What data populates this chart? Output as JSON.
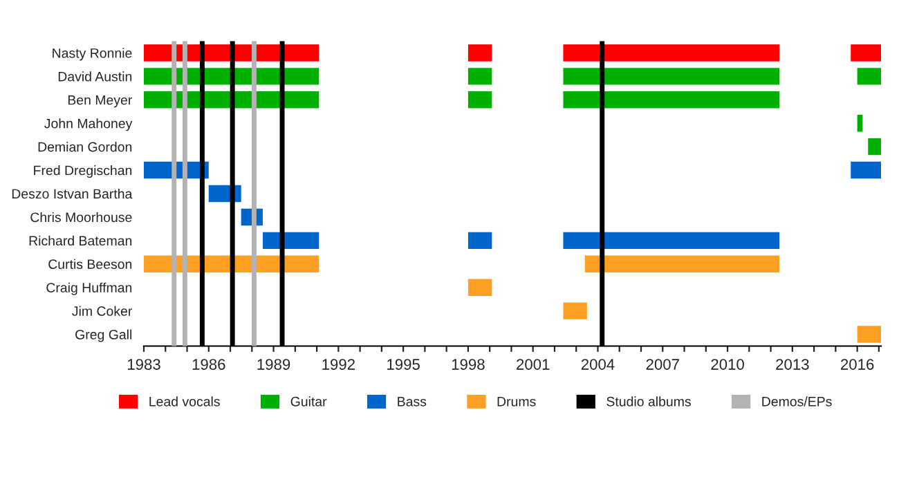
{
  "chart_data": {
    "type": "bar",
    "orientation": "horizontal",
    "legend": "bottom",
    "grid": false,
    "categories": [
      "Nasty Ronnie",
      "David Austin",
      "Ben Meyer",
      "John Mahoney",
      "Demian Gordon",
      "Fred Dregischan",
      "Deszo Istvan Bartha",
      "Chris Moorhouse",
      "Richard Bateman",
      "Curtis Beeson",
      "Craig Huffman",
      "Jim Coker",
      "Greg Gall"
    ],
    "xlim": [
      1983,
      2017.1
    ],
    "xticks": [
      1983,
      {
        "value": 1984,
        "label": null
      },
      {
        "value": 1985,
        "label": null
      },
      1986,
      {
        "value": 1987,
        "label": null
      },
      {
        "value": 1988,
        "label": null
      },
      1989,
      {
        "value": 1990,
        "label": null
      },
      {
        "value": 1991,
        "label": null
      },
      1992,
      {
        "value": 1993,
        "label": null
      },
      {
        "value": 1994,
        "label": null
      },
      1995,
      {
        "value": 1996,
        "label": null
      },
      {
        "value": 1997,
        "label": null
      },
      1998,
      {
        "value": 1999,
        "label": null
      },
      {
        "value": 2000,
        "label": null
      },
      2001,
      {
        "value": 2002,
        "label": null
      },
      {
        "value": 2003,
        "label": null
      },
      2004,
      {
        "value": 2005,
        "label": null
      },
      {
        "value": 2006,
        "label": null
      },
      2007,
      {
        "value": 2008,
        "label": null
      },
      {
        "value": 2009,
        "label": null
      },
      2010,
      {
        "value": 2011,
        "label": null
      },
      {
        "value": 2012,
        "label": null
      },
      2013,
      {
        "value": 2014,
        "label": null
      },
      {
        "value": 2015,
        "label": null
      },
      2016,
      {
        "value": 2017,
        "label": null
      }
    ],
    "series": [
      {
        "name": "Lead vocals",
        "color": "#ff0000",
        "base": [
          1983,
          null,
          null,
          null,
          null,
          null,
          null,
          null,
          null,
          null,
          null,
          null,
          null
        ],
        "values": [
          8.1,
          null,
          null,
          null,
          null,
          null,
          null,
          null,
          null,
          null,
          null,
          null,
          null
        ]
      },
      {
        "color": "#ff0000",
        "base": [
          1998,
          null,
          null,
          null,
          null,
          null,
          null,
          null,
          null,
          null,
          null,
          null,
          null
        ],
        "values": [
          1.1,
          null,
          null,
          null,
          null,
          null,
          null,
          null,
          null,
          null,
          null,
          null,
          null
        ]
      },
      {
        "color": "#ff0000",
        "base": [
          2002.4,
          null,
          null,
          null,
          null,
          null,
          null,
          null,
          null,
          null,
          null,
          null,
          null
        ],
        "values": [
          10,
          null,
          null,
          null,
          null,
          null,
          null,
          null,
          null,
          null,
          null,
          null,
          null
        ]
      },
      {
        "color": "#ff0000",
        "base": [
          2015.7,
          null,
          null,
          null,
          null,
          null,
          null,
          null,
          null,
          null,
          null,
          null,
          null
        ],
        "values": [
          1.4,
          null,
          null,
          null,
          null,
          null,
          null,
          null,
          null,
          null,
          null,
          null,
          null
        ]
      },
      {
        "name": "Guitar",
        "color": "#00b000",
        "base": [
          null,
          1983,
          1983,
          null,
          null,
          null,
          null,
          null,
          null,
          null,
          null,
          null,
          null
        ],
        "values": [
          null,
          8.1,
          8.1,
          null,
          null,
          null,
          null,
          null,
          null,
          null,
          null,
          null,
          null
        ]
      },
      {
        "color": "#00b000",
        "base": [
          null,
          1998,
          1998,
          null,
          null,
          null,
          null,
          null,
          null,
          null,
          null,
          null,
          null
        ],
        "values": [
          null,
          1.1,
          1.1,
          null,
          null,
          null,
          null,
          null,
          null,
          null,
          null,
          null,
          null
        ]
      },
      {
        "color": "#00b000",
        "base": [
          null,
          2002.4,
          2002.4,
          null,
          null,
          null,
          null,
          null,
          null,
          null,
          null,
          null,
          null
        ],
        "values": [
          null,
          10,
          10,
          null,
          null,
          null,
          null,
          null,
          null,
          null,
          null,
          null,
          null
        ]
      },
      {
        "color": "#00b000",
        "base": [
          null,
          2016,
          null,
          2016,
          2016.5,
          null,
          null,
          null,
          null,
          null,
          null,
          null,
          null
        ],
        "values": [
          null,
          1.1,
          null,
          0.25,
          0.6,
          null,
          null,
          null,
          null,
          null,
          null,
          null,
          null
        ]
      },
      {
        "name": "Bass",
        "color": "#0066cc",
        "base": [
          null,
          null,
          null,
          null,
          null,
          1983,
          1986,
          1987.5,
          1988.5,
          null,
          null,
          null,
          null
        ],
        "values": [
          null,
          null,
          null,
          null,
          null,
          3,
          1.5,
          1,
          2.6,
          null,
          null,
          null,
          null
        ]
      },
      {
        "color": "#0066cc",
        "base": [
          null,
          null,
          null,
          null,
          null,
          null,
          null,
          null,
          1998,
          null,
          null,
          null,
          null
        ],
        "values": [
          null,
          null,
          null,
          null,
          null,
          null,
          null,
          null,
          1.1,
          null,
          null,
          null,
          null
        ]
      },
      {
        "color": "#0066cc",
        "base": [
          null,
          null,
          null,
          null,
          null,
          2015.7,
          null,
          null,
          2002.4,
          null,
          null,
          null,
          null
        ],
        "values": [
          null,
          null,
          null,
          null,
          null,
          1.4,
          null,
          null,
          10,
          null,
          null,
          null,
          null
        ]
      },
      {
        "name": "Drums",
        "color": "#ffa024",
        "base": [
          null,
          null,
          null,
          null,
          null,
          null,
          null,
          null,
          null,
          1983,
          1998,
          2002.4,
          2016
        ],
        "values": [
          null,
          null,
          null,
          null,
          null,
          null,
          null,
          null,
          null,
          8.1,
          1.1,
          1.1,
          1.1
        ]
      },
      {
        "color": "#ffa024",
        "base": [
          null,
          null,
          null,
          null,
          null,
          null,
          null,
          null,
          null,
          2003.4,
          null,
          null,
          null
        ],
        "values": [
          null,
          null,
          null,
          null,
          null,
          null,
          null,
          null,
          null,
          9,
          null,
          null,
          null
        ]
      }
    ],
    "ref_lines": [
      {
        "axis": "x",
        "value": 1985.7,
        "color": "#000000",
        "label": "Studio albums"
      },
      {
        "axis": "x",
        "value": 1987.1,
        "color": "#000000"
      },
      {
        "axis": "x",
        "value": 1989.4,
        "color": "#000000"
      },
      {
        "axis": "x",
        "value": 2004.2,
        "color": "#000000"
      },
      {
        "axis": "x",
        "value": 1984.4,
        "color": "#b3b3b3",
        "label": "Demos/EPs"
      },
      {
        "axis": "x",
        "value": 1984.9,
        "color": "#b3b3b3"
      },
      {
        "axis": "x",
        "value": 1988.1,
        "color": "#b3b3b3"
      }
    ]
  }
}
